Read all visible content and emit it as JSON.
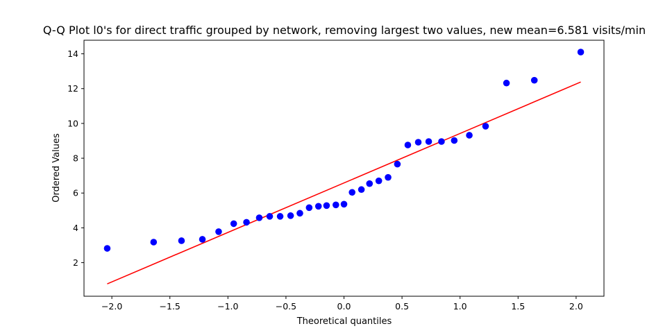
{
  "chart_data": {
    "type": "scatter",
    "title": "Q-Q Plot l0's for direct traffic grouped by network, removing largest two values, new mean=6.581 visits/min",
    "xlabel": "Theoretical quantiles",
    "ylabel": "Ordered Values",
    "xlim": [
      -2.24,
      2.24
    ],
    "ylim": [
      0.07,
      14.78
    ],
    "x_ticks": [
      -2.0,
      -1.5,
      -1.0,
      -0.5,
      0.0,
      0.5,
      1.0,
      1.5,
      2.0
    ],
    "x_tick_labels": [
      "−2.0",
      "−1.5",
      "−1.0",
      "−0.5",
      "0.0",
      "0.5",
      "1.0",
      "1.5",
      "2.0"
    ],
    "y_ticks": [
      2,
      4,
      6,
      8,
      10,
      12,
      14
    ],
    "y_tick_labels": [
      "2",
      "4",
      "6",
      "8",
      "10",
      "12",
      "14"
    ],
    "grid": false,
    "points": {
      "color": "#0000ff",
      "x": [
        -2.04,
        -1.64,
        -1.4,
        -1.22,
        -1.08,
        -0.95,
        -0.84,
        -0.73,
        -0.64,
        -0.55,
        -0.46,
        -0.38,
        -0.3,
        -0.22,
        -0.15,
        -0.07,
        0.0,
        0.07,
        0.15,
        0.22,
        0.3,
        0.38,
        0.46,
        0.55,
        0.64,
        0.73,
        0.84,
        0.95,
        1.08,
        1.22,
        1.4,
        1.64,
        2.04
      ],
      "y": [
        2.82,
        3.18,
        3.26,
        3.34,
        3.78,
        4.24,
        4.32,
        4.58,
        4.66,
        4.66,
        4.7,
        4.84,
        5.16,
        5.24,
        5.28,
        5.32,
        5.36,
        6.04,
        6.2,
        6.54,
        6.7,
        6.9,
        7.66,
        8.76,
        8.92,
        8.96,
        8.96,
        9.02,
        9.32,
        9.84,
        12.32,
        12.48,
        14.1
      ]
    },
    "fit_line": {
      "color": "#ff0000",
      "x": [
        -2.04,
        2.04
      ],
      "y": [
        0.78,
        12.38
      ]
    }
  }
}
